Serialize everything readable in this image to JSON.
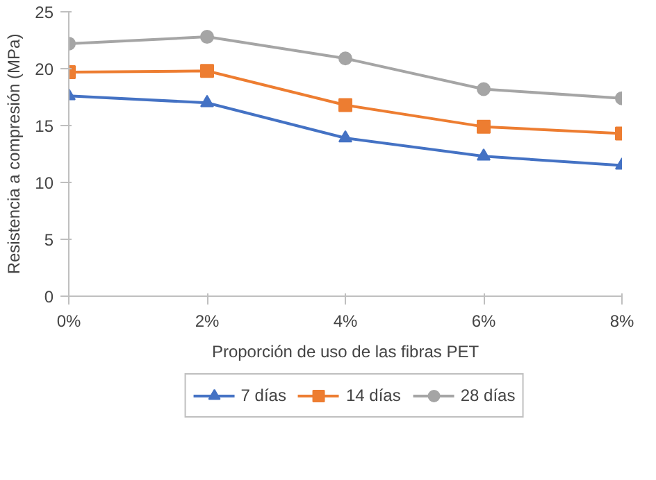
{
  "chart_data": {
    "type": "line",
    "xlabel": "Proporción de uso de las fibras PET",
    "ylabel": "Resistencia a compresión (MPa)",
    "categories": [
      "0%",
      "2%",
      "4%",
      "6%",
      "8%"
    ],
    "ylim": [
      0,
      25
    ],
    "yticks": [
      0,
      5,
      10,
      15,
      20,
      25
    ],
    "grid": false,
    "legend": "bottom",
    "series": [
      {
        "name": "7 días",
        "color": "#4472c4",
        "marker": "triangle",
        "values": [
          17.6,
          17.0,
          13.9,
          12.3,
          11.5
        ]
      },
      {
        "name": "14 días",
        "color": "#ed7d31",
        "marker": "square",
        "values": [
          19.7,
          19.8,
          16.8,
          14.9,
          14.3
        ]
      },
      {
        "name": "28 días",
        "color": "#a5a5a5",
        "marker": "circle",
        "values": [
          22.2,
          22.8,
          20.9,
          18.2,
          17.4
        ]
      }
    ]
  }
}
